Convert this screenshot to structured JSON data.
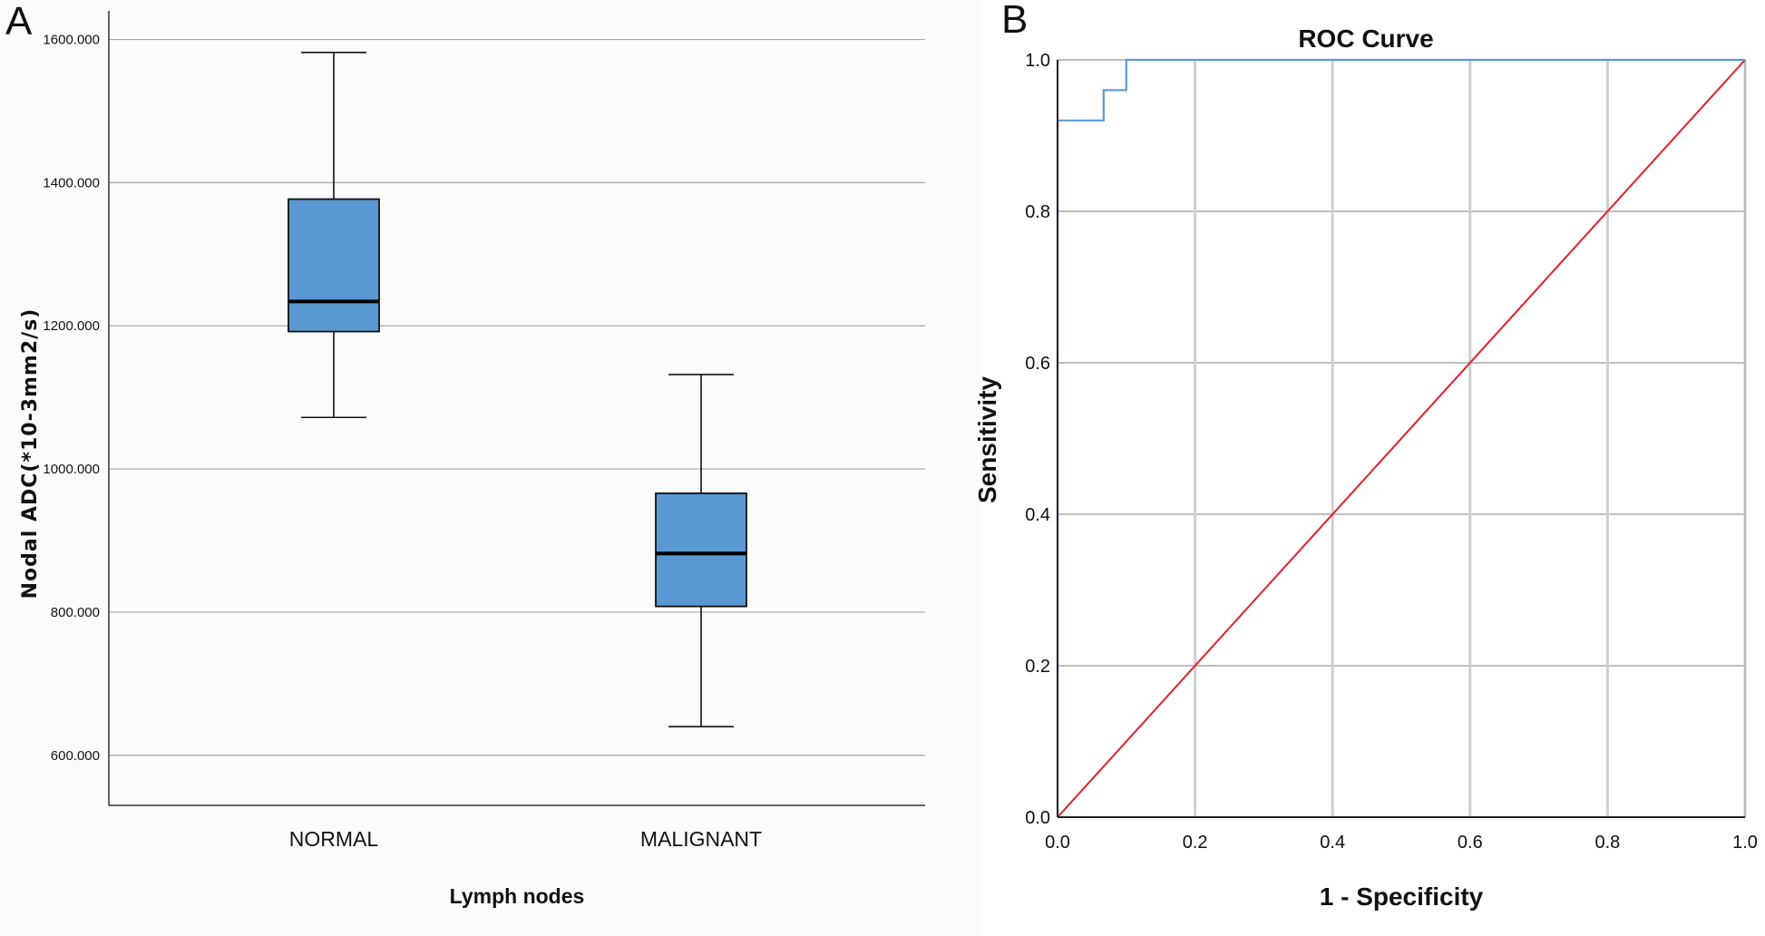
{
  "panel_labels": {
    "a": "A",
    "b": "B"
  },
  "colors": {
    "box_fill": "#5A98D4",
    "roc_line": "#5B9BD5",
    "reference_line": "#E0202A",
    "grid": "#A8A8A8",
    "panel_a_background": "#FBFBFB"
  },
  "chart_data": [
    {
      "type": "box",
      "title": "",
      "xlabel": "Lymph nodes",
      "ylabel": "Nodal ADC(*10-3mm2/s)",
      "ylim": [
        530,
        1640
      ],
      "yticks": [
        600,
        800,
        1000,
        1200,
        1400,
        1600
      ],
      "ytick_labels": [
        "600.000",
        "800.000",
        "1000.000",
        "1200.000",
        "1400.000",
        "1600.000"
      ],
      "categories": [
        "NORMAL",
        "MALIGNANT"
      ],
      "boxes": [
        {
          "name": "NORMAL",
          "min": 1072,
          "q1": 1192,
          "median": 1234,
          "q3": 1377,
          "max": 1582
        },
        {
          "name": "MALIGNANT",
          "min": 640,
          "q1": 808,
          "median": 882,
          "q3": 966,
          "max": 1132
        }
      ],
      "grid": true
    },
    {
      "type": "line",
      "title": "ROC Curve",
      "xlabel": "1 - Specificity",
      "ylabel": "Sensitivity",
      "xlim": [
        0,
        1
      ],
      "ylim": [
        0,
        1
      ],
      "xticks": [
        0,
        0.2,
        0.4,
        0.6,
        0.8,
        1
      ],
      "xtick_labels": [
        "0.0",
        "0.2",
        "0.4",
        "0.6",
        "0.8",
        "1.0"
      ],
      "yticks": [
        0,
        0.2,
        0.4,
        0.6,
        0.8,
        1
      ],
      "ytick_labels": [
        "0.0",
        "0.2",
        "0.4",
        "0.6",
        "0.8",
        "1.0"
      ],
      "series": [
        {
          "name": "ROC",
          "x": [
            0,
            0,
            0,
            0.067,
            0.067,
            0.1,
            0.1,
            1
          ],
          "y": [
            0,
            0.92,
            0.92,
            0.92,
            0.96,
            0.96,
            1.0,
            1.0
          ]
        },
        {
          "name": "Reference Line",
          "x": [
            0,
            1
          ],
          "y": [
            0,
            1
          ]
        }
      ],
      "grid": true
    }
  ]
}
